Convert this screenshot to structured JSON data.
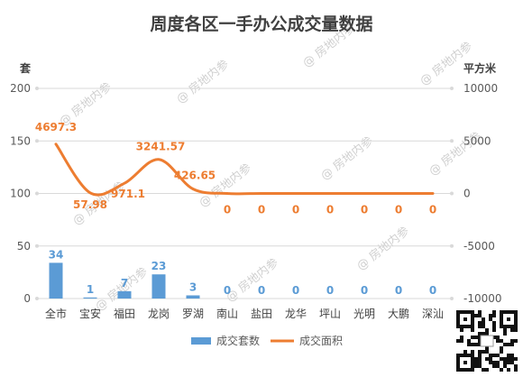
{
  "chart_data": {
    "type": "bar+line",
    "title": "周度各区一手办公成交量数据",
    "left_axis_unit": "套",
    "right_axis_unit": "平方米",
    "categories": [
      "全市",
      "宝安",
      "福田",
      "龙岗",
      "罗湖",
      "南山",
      "盐田",
      "龙华",
      "坪山",
      "光明",
      "大鹏",
      "深汕"
    ],
    "left_ylim": [
      0,
      200
    ],
    "left_ticks": [
      0,
      50,
      100,
      150,
      200
    ],
    "right_ylim": [
      -10000,
      10000
    ],
    "right_ticks": [
      -10000,
      -5000,
      0,
      5000,
      10000
    ],
    "grid": true,
    "legend_position": "bottom",
    "series": [
      {
        "name": "成交套数",
        "type": "bar",
        "axis": "left",
        "color": "#5B9BD5",
        "values": [
          34,
          1,
          7,
          23,
          3,
          0,
          0,
          0,
          0,
          0,
          0,
          0
        ],
        "labels": [
          "34",
          "1",
          "7",
          "23",
          "3",
          "0",
          "0",
          "0",
          "0",
          "0",
          "0",
          "0"
        ]
      },
      {
        "name": "成交面积",
        "type": "line",
        "axis": "right",
        "color": "#ED7D31",
        "smooth": true,
        "values": [
          4697.3,
          57.98,
          971.1,
          3241.57,
          426.65,
          0,
          0,
          0,
          0,
          0,
          0,
          0
        ],
        "labels": [
          "4697.3",
          "57.98",
          "971.1",
          "3241.57",
          "426.65",
          "0",
          "0",
          "0",
          "0",
          "0",
          "0",
          "0"
        ]
      }
    ],
    "watermark": "房地内参"
  }
}
